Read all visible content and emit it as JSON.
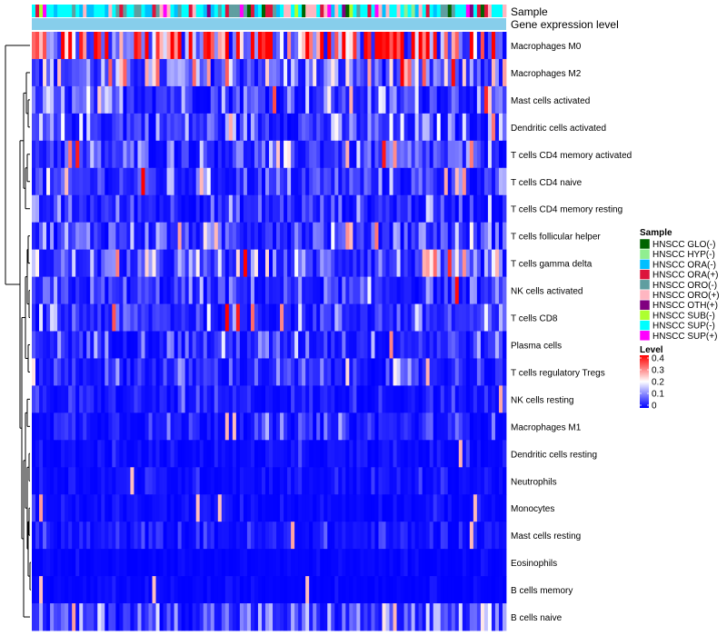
{
  "chart_data": {
    "type": "heatmap",
    "annotation_rows": [
      "Sample",
      "Gene expression level"
    ],
    "rows": [
      {
        "label": "Macrophages M0",
        "mean": 0.3
      },
      {
        "label": "Macrophages M2",
        "mean": 0.1
      },
      {
        "label": "Mast cells activated",
        "mean": 0.07
      },
      {
        "label": "Dendritic cells activated",
        "mean": 0.06
      },
      {
        "label": "T cells CD4 memory activated",
        "mean": 0.06
      },
      {
        "label": "T cells CD4 naive",
        "mean": 0.05
      },
      {
        "label": "T cells CD4 memory resting",
        "mean": 0.04
      },
      {
        "label": "T cells follicular helper",
        "mean": 0.07
      },
      {
        "label": "T cells gamma delta",
        "mean": 0.07
      },
      {
        "label": "NK cells activated",
        "mean": 0.04
      },
      {
        "label": "T cells CD8",
        "mean": 0.05
      },
      {
        "label": "Plasma cells",
        "mean": 0.05
      },
      {
        "label": "T cells regulatory  Tregs",
        "mean": 0.04
      },
      {
        "label": "NK cells resting",
        "mean": 0.02
      },
      {
        "label": "Macrophages M1",
        "mean": 0.03
      },
      {
        "label": "Dendritic cells resting",
        "mean": 0.01
      },
      {
        "label": "Neutrophils",
        "mean": 0.015
      },
      {
        "label": "Monocytes",
        "mean": 0.01
      },
      {
        "label": "Mast cells resting",
        "mean": 0.02
      },
      {
        "label": "Eosinophils",
        "mean": 0.005
      },
      {
        "label": "B cells memory",
        "mean": 0.005
      },
      {
        "label": "B cells naive",
        "mean": 0.06
      }
    ],
    "n_samples": 130,
    "legend_sample": {
      "title": "Sample",
      "items": [
        {
          "label": "HNSCC GLO(-)",
          "color": "#006400"
        },
        {
          "label": "HNSCC HYP(-)",
          "color": "#90EE90"
        },
        {
          "label": "HNSCC ORA(-)",
          "color": "#00BFFF"
        },
        {
          "label": "HNSCC ORA(+)",
          "color": "#DC143C"
        },
        {
          "label": "HNSCC ORO(-)",
          "color": "#5F9EA0"
        },
        {
          "label": "HNSCC ORO(+)",
          "color": "#FFB6C1"
        },
        {
          "label": "HNSCC OTH(+)",
          "color": "#800080"
        },
        {
          "label": "HNSCC SUB(-)",
          "color": "#ADFF2F"
        },
        {
          "label": "HNSCC SUP(-)",
          "color": "#00FFFF"
        },
        {
          "label": "HNSCC SUP(+)",
          "color": "#FF00FF"
        }
      ]
    },
    "legend_level": {
      "title": "Level",
      "ticks": [
        "0.4",
        "0.3",
        "0.2",
        "0.1",
        "0"
      ],
      "tick_values": [
        0.4,
        0.3,
        0.2,
        0.1,
        0
      ],
      "range": [
        0,
        0.4
      ],
      "colors": {
        "low": "#0000FF",
        "mid": "#FFFFFF",
        "high": "#FF0000"
      }
    },
    "annotation_color": "#87CEEB"
  }
}
